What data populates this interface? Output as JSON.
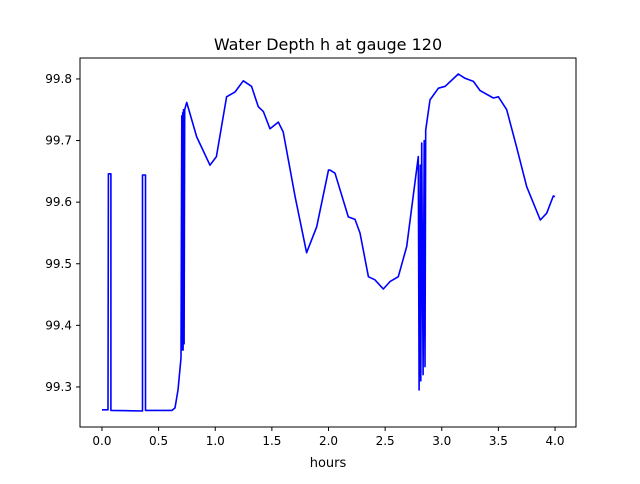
{
  "chart_data": {
    "type": "line",
    "title": "Water Depth h at gauge 120",
    "xlabel": "hours",
    "ylabel": "",
    "xlim": [
      -0.194,
      4.185
    ],
    "ylim": [
      99.235,
      99.834
    ],
    "xticks": [
      "0.0",
      "0.5",
      "1.0",
      "1.5",
      "2.0",
      "2.5",
      "3.0",
      "3.5",
      "4.0"
    ],
    "yticks": [
      "99.3",
      "99.4",
      "99.5",
      "99.6",
      "99.7",
      "99.8"
    ],
    "grid": false,
    "series": [
      {
        "name": "h",
        "color": "#0000ff",
        "points": [
          [
            0.0,
            99.263
          ],
          [
            0.053,
            99.263
          ],
          [
            0.057,
            99.646
          ],
          [
            0.079,
            99.646
          ],
          [
            0.079,
            99.262
          ],
          [
            0.358,
            99.261
          ],
          [
            0.358,
            99.644
          ],
          [
            0.384,
            99.644
          ],
          [
            0.384,
            99.262
          ],
          [
            0.618,
            99.262
          ],
          [
            0.645,
            99.266
          ],
          [
            0.671,
            99.295
          ],
          [
            0.698,
            99.347
          ],
          [
            0.705,
            99.74
          ],
          [
            0.708,
            99.36
          ],
          [
            0.713,
            99.745
          ],
          [
            0.716,
            99.36
          ],
          [
            0.72,
            99.75
          ],
          [
            0.725,
            99.37
          ],
          [
            0.73,
            99.75
          ],
          [
            0.748,
            99.762
          ],
          [
            0.836,
            99.706
          ],
          [
            0.954,
            99.66
          ],
          [
            1.01,
            99.674
          ],
          [
            1.1,
            99.771
          ],
          [
            1.175,
            99.779
          ],
          [
            1.248,
            99.797
          ],
          [
            1.32,
            99.788
          ],
          [
            1.38,
            99.755
          ],
          [
            1.425,
            99.747
          ],
          [
            1.483,
            99.719
          ],
          [
            1.557,
            99.73
          ],
          [
            1.6,
            99.714
          ],
          [
            1.705,
            99.609
          ],
          [
            1.807,
            99.518
          ],
          [
            1.896,
            99.56
          ],
          [
            2.0,
            99.652
          ],
          [
            2.013,
            99.652
          ],
          [
            2.057,
            99.647
          ],
          [
            2.175,
            99.576
          ],
          [
            2.234,
            99.572
          ],
          [
            2.278,
            99.55
          ],
          [
            2.352,
            99.479
          ],
          [
            2.41,
            99.474
          ],
          [
            2.484,
            99.459
          ],
          [
            2.543,
            99.471
          ],
          [
            2.616,
            99.479
          ],
          [
            2.69,
            99.528
          ],
          [
            2.793,
            99.674
          ],
          [
            2.8,
            99.295
          ],
          [
            2.81,
            99.66
          ],
          [
            2.815,
            99.31
          ],
          [
            2.823,
            99.696
          ],
          [
            2.835,
            99.32
          ],
          [
            2.845,
            99.7
          ],
          [
            2.852,
            99.333
          ],
          [
            2.858,
            99.717
          ],
          [
            2.896,
            99.766
          ],
          [
            2.97,
            99.785
          ],
          [
            3.03,
            99.788
          ],
          [
            3.146,
            99.808
          ],
          [
            3.205,
            99.801
          ],
          [
            3.279,
            99.796
          ],
          [
            3.338,
            99.781
          ],
          [
            3.455,
            99.769
          ],
          [
            3.5,
            99.771
          ],
          [
            3.573,
            99.75
          ],
          [
            3.66,
            99.69
          ],
          [
            3.75,
            99.625
          ],
          [
            3.87,
            99.571
          ],
          [
            3.926,
            99.582
          ],
          [
            3.985,
            99.61
          ],
          [
            4.0,
            99.609
          ]
        ]
      }
    ]
  }
}
